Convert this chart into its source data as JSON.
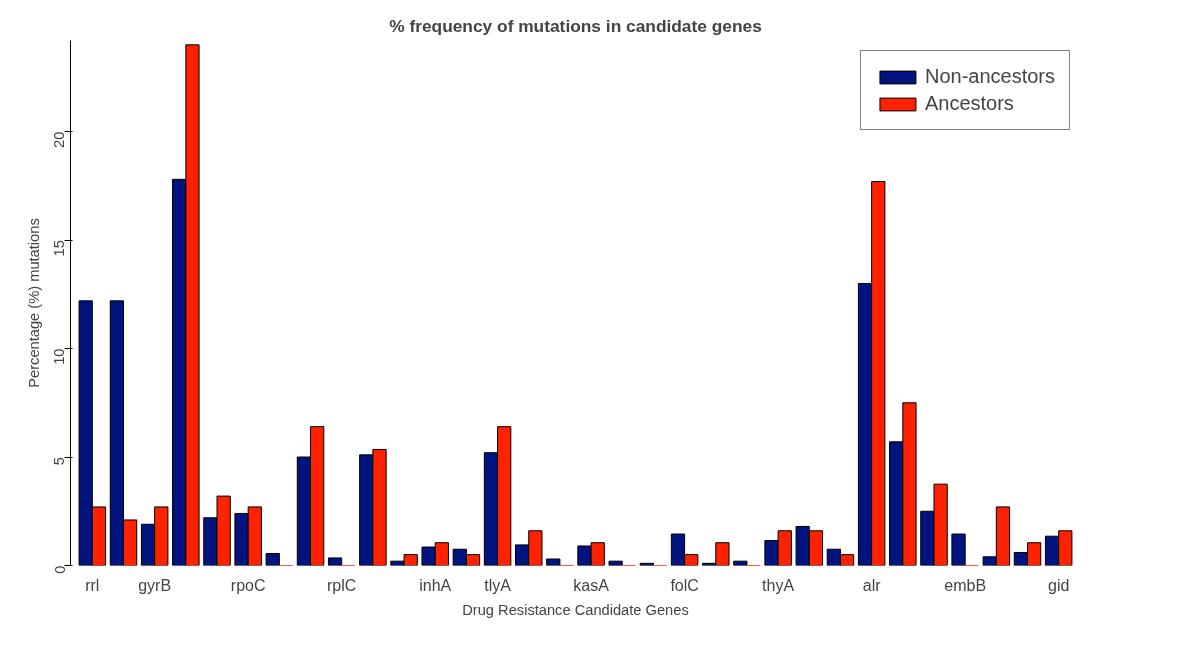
{
  "chart_data": {
    "type": "bar",
    "title": "% frequency of mutations in candidate genes",
    "xlabel": "Drug Resistance Candidate Genes",
    "ylabel": "Percentage (%) mutations",
    "categories": [
      "rrl",
      null,
      "gyrB",
      null,
      null,
      "rpoC",
      null,
      null,
      "rplC",
      null,
      null,
      "inhA",
      null,
      "tlyA",
      null,
      null,
      "kasA",
      null,
      null,
      "folC",
      null,
      null,
      "thyA",
      null,
      null,
      "alr",
      null,
      null,
      "embB",
      null,
      null,
      "gid"
    ],
    "series": [
      {
        "name": "Non-ancestors",
        "color": "#00137f",
        "values": [
          12.2,
          12.2,
          1.9,
          17.8,
          2.2,
          2.4,
          0.55,
          5.0,
          0.35,
          5.1,
          0.2,
          0.85,
          0.75,
          5.2,
          0.95,
          0.3,
          0.9,
          0.2,
          0.1,
          1.45,
          0.1,
          0.2,
          1.15,
          1.8,
          0.75,
          13.0,
          5.7,
          2.5,
          1.45,
          0.4,
          0.6,
          1.35
        ]
      },
      {
        "name": "Ancestors",
        "color": "#ff2200",
        "values": [
          2.7,
          2.1,
          2.7,
          24.0,
          3.2,
          2.7,
          0,
          6.4,
          0,
          5.35,
          0.5,
          1.05,
          0.5,
          6.4,
          1.6,
          0,
          1.05,
          0,
          0,
          0.5,
          1.05,
          0,
          1.6,
          1.6,
          0.5,
          17.7,
          7.5,
          3.75,
          0,
          2.7,
          1.05,
          1.6
        ]
      }
    ],
    "ylim": [
      0,
      24.2
    ],
    "yticks": [
      0,
      5,
      10,
      15,
      20
    ],
    "grid": false,
    "legend": "top right"
  }
}
